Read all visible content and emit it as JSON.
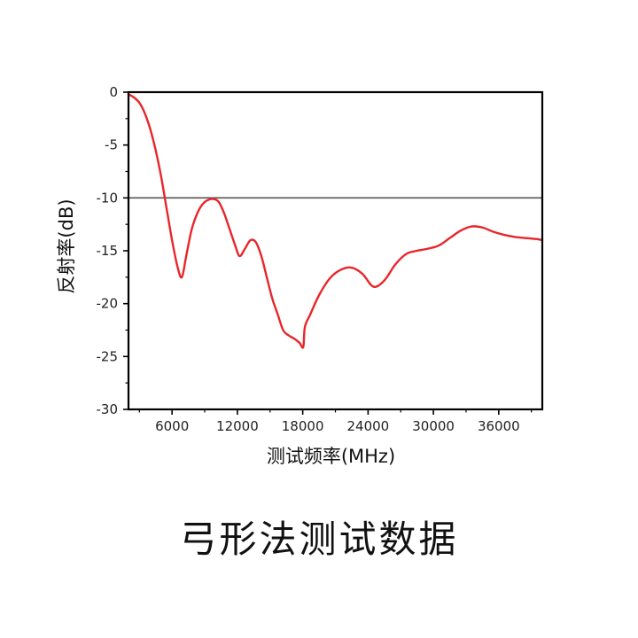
{
  "caption": "弓形法测试数据",
  "colors": {
    "curve": "#e8262b",
    "threshold": "#555555",
    "axis": "#000000",
    "text": "#222222"
  },
  "chart_data": {
    "type": "line",
    "title": "",
    "xlabel": "测试频率(MHz)",
    "ylabel": "反射率(dB)",
    "xlim": [
      2000,
      40000
    ],
    "ylim": [
      -30,
      0
    ],
    "x_ticks": [
      6000,
      12000,
      18000,
      24000,
      30000,
      36000
    ],
    "x_tick_labels": [
      "6000",
      "12000",
      "18000",
      "24000",
      "30000",
      "36000"
    ],
    "y_ticks": [
      0,
      -5,
      -10,
      -15,
      -20,
      -25,
      -30
    ],
    "y_tick_labels": [
      "0",
      "-5",
      "-10",
      "-15",
      "-20",
      "-25",
      "-30"
    ],
    "grid": false,
    "reference_lines": [
      {
        "axis": "y",
        "value": -10
      }
    ],
    "series": [
      {
        "x": [
          2000,
          2500,
          3000,
          3500,
          4000,
          4500,
          5000,
          5500,
          6000,
          6500,
          6900,
          7300,
          7800,
          8300,
          8800,
          9300,
          9800,
          10300,
          10800,
          11300,
          11800,
          12200,
          12700,
          13200,
          13700,
          14200,
          14700,
          15200,
          15700,
          16200,
          16700,
          17200,
          17700,
          18050,
          18200,
          18700,
          19500,
          20500,
          21500,
          22500,
          23500,
          24500,
          25500,
          26500,
          27500,
          28500,
          29500,
          30500,
          31500,
          32500,
          33500,
          34500,
          35500,
          36500,
          37500,
          38500,
          39500,
          40000
        ],
        "y": [
          -0.2,
          -0.5,
          -1.0,
          -2.0,
          -3.5,
          -5.5,
          -8.0,
          -11.0,
          -14.0,
          -16.5,
          -17.5,
          -15.5,
          -13.0,
          -11.5,
          -10.6,
          -10.2,
          -10.1,
          -10.4,
          -11.5,
          -13.0,
          -14.5,
          -15.5,
          -14.8,
          -14.0,
          -14.2,
          -15.5,
          -17.5,
          -19.5,
          -21.0,
          -22.5,
          -23.0,
          -23.3,
          -23.7,
          -24.1,
          -22.2,
          -21.0,
          -19.2,
          -17.6,
          -16.8,
          -16.6,
          -17.2,
          -18.4,
          -17.8,
          -16.3,
          -15.3,
          -15.0,
          -14.8,
          -14.5,
          -13.8,
          -13.1,
          -12.7,
          -12.8,
          -13.2,
          -13.5,
          -13.7,
          -13.8,
          -13.9,
          -14.0
        ]
      }
    ]
  }
}
